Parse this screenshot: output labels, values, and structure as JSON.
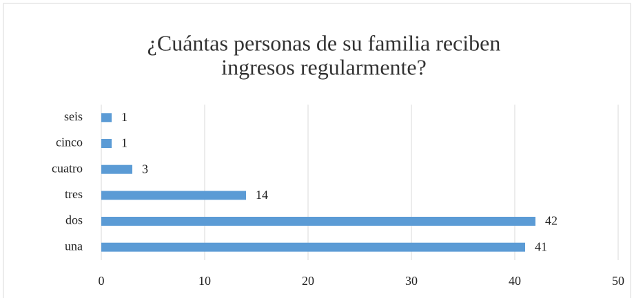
{
  "chart_data": {
    "type": "bar",
    "orientation": "horizontal",
    "title": [
      "¿Cuántas personas de su familia reciben",
      "ingresos regularmente?"
    ],
    "categories": [
      "una",
      "dos",
      "tres",
      "cuatro",
      "cinco",
      "seis"
    ],
    "values": [
      41,
      42,
      14,
      3,
      1,
      1
    ],
    "color": "#5b9bd5",
    "xlim": [
      0,
      50
    ],
    "xticks": [
      0,
      10,
      20,
      30,
      40,
      50
    ],
    "grid": true
  }
}
